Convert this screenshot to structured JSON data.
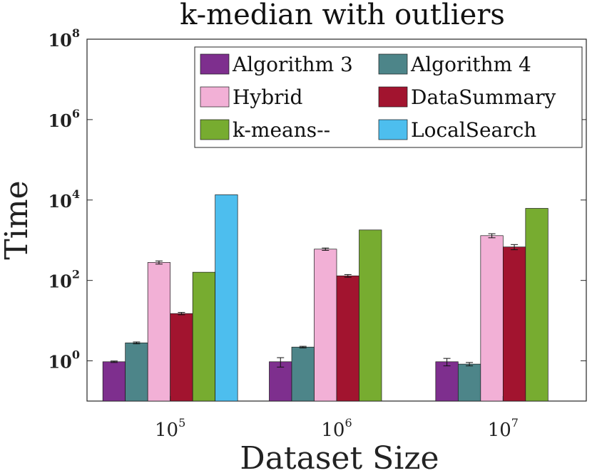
{
  "chart_data": {
    "type": "bar",
    "title": "k-median with outliers",
    "xlabel": "Dataset Size",
    "ylabel": "Time",
    "yscale": "log",
    "ylim": [
      0.1,
      100000000
    ],
    "yticks": [
      {
        "value": 1,
        "base": "10",
        "exp": "0"
      },
      {
        "value": 100,
        "base": "10",
        "exp": "2"
      },
      {
        "value": 10000,
        "base": "10",
        "exp": "4"
      },
      {
        "value": 1000000,
        "base": "10",
        "exp": "6"
      },
      {
        "value": 100000000,
        "base": "10",
        "exp": "8"
      }
    ],
    "categories": [
      {
        "base": "10",
        "exp": "5"
      },
      {
        "base": "10",
        "exp": "6"
      },
      {
        "base": "10",
        "exp": "7"
      }
    ],
    "legend_position": "top-right",
    "series": [
      {
        "name": "Algorithm 3",
        "color": "#7e2f8e",
        "values": [
          0.95,
          0.95,
          0.95
        ],
        "errors": [
          0.04,
          0.25,
          0.2
        ]
      },
      {
        "name": "Algorithm 4",
        "color": "#4d8589",
        "values": [
          2.8,
          2.2,
          0.83
        ],
        "errors": [
          0.15,
          0.1,
          0.08
        ]
      },
      {
        "name": "Hybrid",
        "color": "#f2b0d6",
        "values": [
          280,
          600,
          1300
        ],
        "errors": [
          25,
          40,
          150
        ]
      },
      {
        "name": "DataSummary",
        "color": "#a2142f",
        "values": [
          15,
          130,
          680
        ],
        "errors": [
          1,
          10,
          100
        ]
      },
      {
        "name": "k-means--",
        "color": "#77ac30",
        "values": [
          160,
          1800,
          6200
        ],
        "errors": [
          0,
          0,
          0
        ]
      },
      {
        "name": "LocalSearch",
        "color": "#4dbeee",
        "values": [
          13500,
          null,
          null
        ],
        "errors": [
          0,
          null,
          null
        ]
      }
    ]
  }
}
